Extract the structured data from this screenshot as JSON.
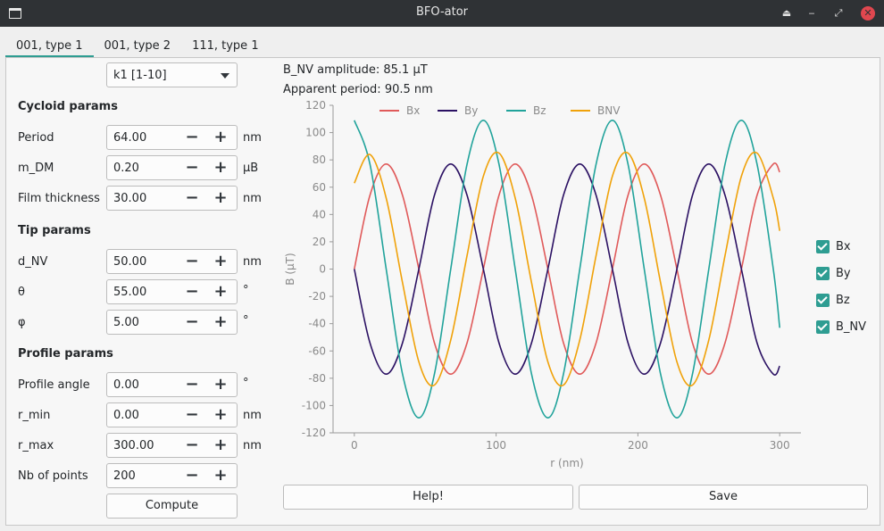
{
  "window": {
    "title": "BFO-ator",
    "buttons": [
      "eject-icon",
      "minimize-icon",
      "restore-icon",
      "close-icon"
    ]
  },
  "tabs": [
    {
      "label": "001, type 1",
      "active": true
    },
    {
      "label": "001, type 2"
    },
    {
      "label": "111, type 1"
    }
  ],
  "k_select": {
    "value": "k1 [1-10]"
  },
  "sections": {
    "cycloid": "Cycloid params",
    "tip": "Tip params",
    "profile": "Profile params"
  },
  "fields": {
    "period": {
      "label": "Period",
      "value": "64.00",
      "unit": "nm"
    },
    "m_dm": {
      "label": "m_DM",
      "value": "0.20",
      "unit": "µB"
    },
    "film_thickness": {
      "label": "Film thickness",
      "value": "30.00",
      "unit": "nm"
    },
    "d_nv": {
      "label": "d_NV",
      "value": "50.00",
      "unit": "nm"
    },
    "theta": {
      "label": "θ",
      "value": "55.00",
      "unit": "°"
    },
    "phi": {
      "label": "φ",
      "value": "5.00",
      "unit": "°"
    },
    "profile_angle": {
      "label": "Profile angle",
      "value": "0.00",
      "unit": "°"
    },
    "r_min": {
      "label": "r_min",
      "value": "0.00",
      "unit": "nm"
    },
    "r_max": {
      "label": "r_max",
      "value": "300.00",
      "unit": "nm"
    },
    "nb_points": {
      "label": "Nb of points",
      "value": "200",
      "unit": ""
    }
  },
  "buttons": {
    "compute": "Compute",
    "help": "Help!",
    "save": "Save"
  },
  "info": {
    "amplitude": "B_NV amplitude: 85.1 µT",
    "period": "Apparent period: 90.5 nm"
  },
  "checkboxes": [
    {
      "label": "Bx",
      "checked": true
    },
    {
      "label": "By",
      "checked": true
    },
    {
      "label": "Bz",
      "checked": true
    },
    {
      "label": "B_NV",
      "checked": true
    }
  ],
  "colors": {
    "accent": "#2e9d92",
    "Bx": "#e05a5a",
    "By": "#2b1163",
    "Bz": "#21a39b",
    "BNV": "#f0a20a"
  },
  "chart_data": {
    "type": "line",
    "xlabel": "r (nm)",
    "ylabel": "B (µT)",
    "xlim": [
      -15,
      315
    ],
    "ylim": [
      -120,
      120
    ],
    "xticks": [
      0,
      100,
      200,
      300
    ],
    "yticks": [
      -120,
      -100,
      -80,
      -60,
      -40,
      -20,
      0,
      20,
      40,
      60,
      80,
      100,
      120
    ],
    "legend_placement": "top",
    "grid": false,
    "x": [
      0,
      11,
      22.5,
      34,
      45.5,
      56.5,
      68,
      79.5,
      91,
      102,
      113.5,
      125,
      136.5,
      147.5,
      159,
      170.5,
      182,
      193,
      204.5,
      216,
      227.5,
      238.5,
      250,
      261.5,
      273,
      284,
      295.5,
      300
    ],
    "series": [
      {
        "name": "Bx",
        "color": "#e05a5a",
        "values": [
          0,
          54,
          77,
          54,
          0,
          -54,
          -77,
          -54,
          0,
          54,
          77,
          54,
          0,
          -54,
          -77,
          -54,
          0,
          54,
          77,
          54,
          0,
          -54,
          -77,
          -54,
          0,
          54,
          77,
          71
        ]
      },
      {
        "name": "By",
        "color": "#2b1163",
        "values": [
          0,
          -54,
          -77,
          -54,
          0,
          54,
          77,
          54,
          0,
          -54,
          -77,
          -54,
          0,
          54,
          77,
          54,
          0,
          -54,
          -77,
          -54,
          0,
          54,
          77,
          54,
          0,
          -54,
          -77,
          -71
        ]
      },
      {
        "name": "Bz",
        "color": "#21a39b",
        "values": [
          109,
          77,
          0,
          -77,
          -109,
          -77,
          0,
          77,
          109,
          77,
          0,
          -77,
          -109,
          -77,
          0,
          77,
          109,
          77,
          0,
          -77,
          -109,
          -77,
          0,
          77,
          109,
          77,
          0,
          -43
        ]
      },
      {
        "name": "BNV",
        "color": "#f0a20a",
        "values": [
          63,
          84,
          52,
          -10,
          -68,
          -85,
          -52,
          10,
          68,
          85,
          52,
          -10,
          -68,
          -85,
          -52,
          10,
          68,
          85,
          52,
          -10,
          -68,
          -85,
          -52,
          10,
          68,
          85,
          52,
          28
        ]
      }
    ]
  }
}
